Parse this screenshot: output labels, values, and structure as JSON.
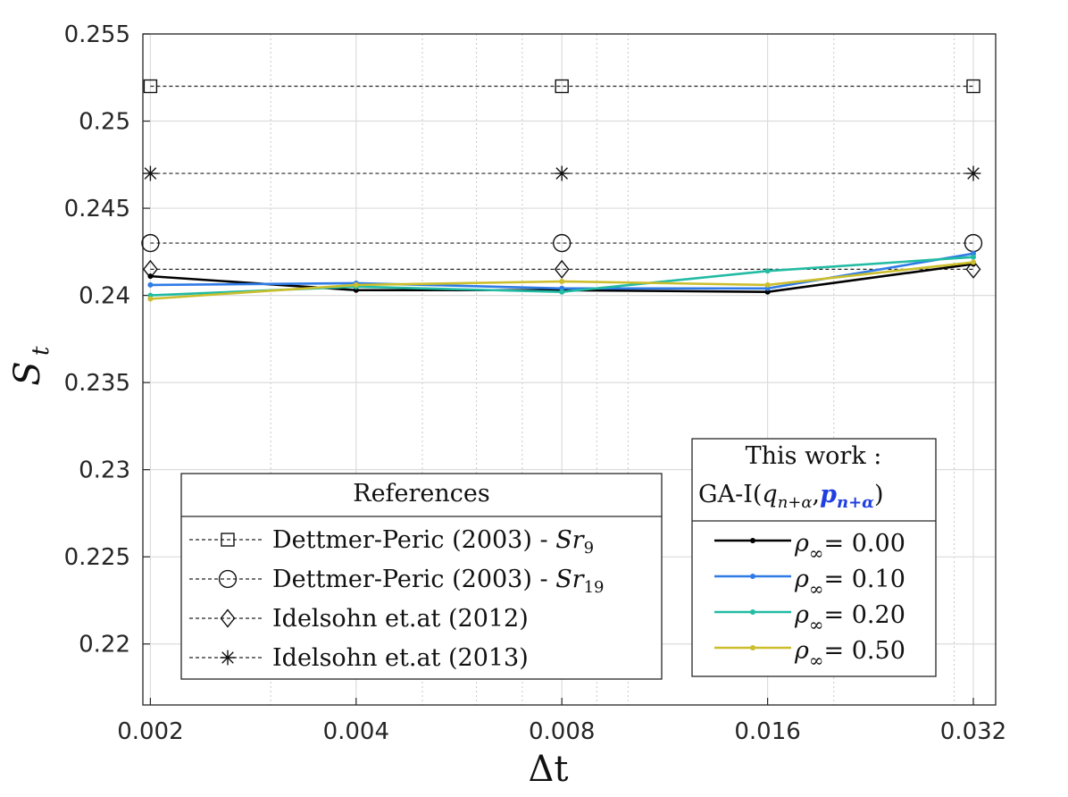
{
  "chart_data": {
    "type": "line",
    "x_scale": "log",
    "xlabel": "Δt",
    "ylabel_main": "S",
    "ylabel_sub": "t",
    "xlim": [
      0.00195,
      0.0345
    ],
    "ylim": [
      0.2165,
      0.255
    ],
    "x_ticks": [
      0.002,
      0.004,
      0.008,
      0.016,
      0.032
    ],
    "x_tick_labels": [
      "0.002",
      "0.004",
      "0.008",
      "0.016",
      "0.032"
    ],
    "y_ticks": [
      0.22,
      0.225,
      0.23,
      0.235,
      0.24,
      0.245,
      0.25,
      0.255
    ],
    "y_tick_labels": [
      "0.22",
      "0.225",
      "0.23",
      "0.235",
      "0.24",
      "0.245",
      "0.25",
      "0.255"
    ],
    "grid": true,
    "x": [
      0.002,
      0.004,
      0.008,
      0.016,
      0.032
    ],
    "reference_series": [
      {
        "name": "Dettmer-Peric (2003) - ",
        "name_math": "Sr",
        "name_sub": "9",
        "marker": "square",
        "y": 0.252,
        "marker_x": [
          0.002,
          0.008,
          0.032
        ]
      },
      {
        "name": "Dettmer-Peric (2003) - ",
        "name_math": "Sr",
        "name_sub": "19",
        "marker": "circle",
        "y": 0.243,
        "marker_x": [
          0.002,
          0.008,
          0.032
        ]
      },
      {
        "name": "Idelsohn et.at (2012)",
        "marker": "diamond",
        "y": 0.2415,
        "marker_x": [
          0.002,
          0.008,
          0.032
        ]
      },
      {
        "name": "Idelsohn et.at (2013)",
        "marker": "asterisk",
        "y": 0.247,
        "marker_x": [
          0.002,
          0.008,
          0.032
        ]
      }
    ],
    "work_series": [
      {
        "name": "= 0.00",
        "color": "#000000",
        "y": [
          0.2411,
          0.2403,
          0.2403,
          0.2402,
          0.2418
        ]
      },
      {
        "name": "= 0.10",
        "color": "#2f7be6",
        "y": [
          0.2406,
          0.2407,
          0.2404,
          0.2404,
          0.2424
        ]
      },
      {
        "name": "= 0.20",
        "color": "#22bba3",
        "y": [
          0.24,
          0.2405,
          0.2402,
          0.2414,
          0.2422
        ]
      },
      {
        "name": "= 0.50",
        "color": "#cbbe2c",
        "y": [
          0.2398,
          0.2406,
          0.2408,
          0.2406,
          0.2419
        ]
      }
    ],
    "legend_references": {
      "title": "References",
      "placement": "bottom-center"
    },
    "legend_work": {
      "title_line1": "This work :",
      "title_line2_prefix": "GA-I(",
      "title_q": "q",
      "title_q_sub": "n+α",
      "title_sep": ",",
      "title_p": "p",
      "title_p_sub": "n+α",
      "title_suffix": ")",
      "rho_symbol": "ρ",
      "rho_sub": "∞",
      "placement": "bottom-right"
    }
  }
}
